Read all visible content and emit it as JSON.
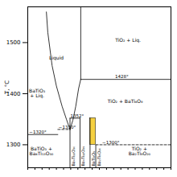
{
  "chart_data": {
    "type": "line",
    "ylabel": "T, °C",
    "xlim": [
      0,
      1
    ],
    "ylim": [
      1255,
      1570
    ],
    "yticks": [
      1300,
      1400,
      1500
    ],
    "xticks": [
      0,
      0.05,
      0.1,
      0.15,
      0.2,
      0.25,
      0.3,
      0.35,
      0.4,
      0.45,
      0.5,
      0.55,
      0.6,
      0.65,
      0.7,
      0.75,
      0.8,
      0.85,
      0.9,
      0.95,
      1
    ],
    "tick_labels": "y",
    "color": "#000000",
    "series": [
      {
        "x": [
          0.13,
          0.14,
          0.17,
          0.2,
          0.24,
          0.27,
          0.295
        ],
        "values": [
          1560,
          1520,
          1455,
          1415,
          1375,
          1350,
          1330
        ],
        "line_style": "solid"
      },
      {
        "x": [
          0.295,
          0.315,
          0.335,
          0.355,
          0.37
        ],
        "values": [
          1330,
          1348,
          1375,
          1410,
          1428
        ],
        "line_style": "solid"
      },
      {
        "x": [
          0.37,
          0.37
        ],
        "values": [
          1570,
          1428
        ],
        "line_style": "solid"
      },
      {
        "x": [
          0.295,
          0.295
        ],
        "values": [
          1255,
          1352
        ],
        "line_style": "solid"
      },
      {
        "x": [
          0.365,
          0.365
        ],
        "values": [
          1255,
          1352
        ],
        "line_style": "solid"
      },
      {
        "x": [
          0.435,
          0.435
        ],
        "values": [
          1255,
          1352
        ],
        "line_style": "solid"
      },
      {
        "x": [
          0.475,
          0.475
        ],
        "values": [
          1255,
          1300
        ],
        "line_style": "solid"
      },
      {
        "x": [
          0.37,
          1.0
        ],
        "values": [
          1428,
          1428
        ],
        "line_style": "solid"
      },
      {
        "x": [
          0.295,
          0.365
        ],
        "values": [
          1352,
          1352
        ],
        "line_style": "solid"
      },
      {
        "x": [
          0.21,
          0.295
        ],
        "values": [
          1330,
          1330
        ],
        "line_style": "dashed"
      },
      {
        "x": [
          0.0,
          0.21
        ],
        "values": [
          1320,
          1320
        ],
        "line_style": "solid"
      },
      {
        "x": [
          0.475,
          1.0
        ],
        "values": [
          1300,
          1300
        ],
        "line_style": "dashed"
      }
    ],
    "regions": [
      {
        "x": [
          0.435,
          0.475
        ],
        "y": [
          1300,
          1352
        ],
        "color": "#f5d040"
      }
    ],
    "labels": [
      {
        "x": 0.2,
        "y": 1470,
        "text": "Liquid"
      },
      {
        "x": 0.7,
        "y": 1505,
        "text": "TiO₂ + Liq."
      },
      {
        "x": 0.065,
        "y": 1400,
        "text": "BaTiO₃\n+ Liq."
      },
      {
        "x": 0.68,
        "y": 1385,
        "text": "TiO₂ + BaTi₄O₉"
      },
      {
        "x": 0.095,
        "y": 1287,
        "text": "BaTiO₃ +\nBa₄Ti₁₃O₃₀"
      },
      {
        "x": 0.78,
        "y": 1287,
        "text": "TiO₂ +\nBa₂Ti₉O₂₀"
      }
    ],
    "annotations": [
      {
        "x": 0.01,
        "y": 1322,
        "text": "~1320°"
      },
      {
        "x": 0.215,
        "y": 1332,
        "text": "~1330°"
      },
      {
        "x": 0.298,
        "y": 1354,
        "text": "1352°"
      },
      {
        "x": 0.61,
        "y": 1430,
        "text": "1428°"
      },
      {
        "x": 0.52,
        "y": 1302,
        "text": "~1300°"
      }
    ],
    "compound_labels": [
      {
        "x": 0.308,
        "y": 1258,
        "text": "Ba₄Ti₁₃O₃₀"
      },
      {
        "x": 0.378,
        "y": 1258,
        "text": "Ba₄Ti₁₂O₂₉"
      },
      {
        "x": 0.448,
        "y": 1258,
        "text": "BaTi₄O₉"
      },
      {
        "x": 0.488,
        "y": 1258,
        "text": "Ba₂Ti₉O₂₀"
      }
    ]
  }
}
